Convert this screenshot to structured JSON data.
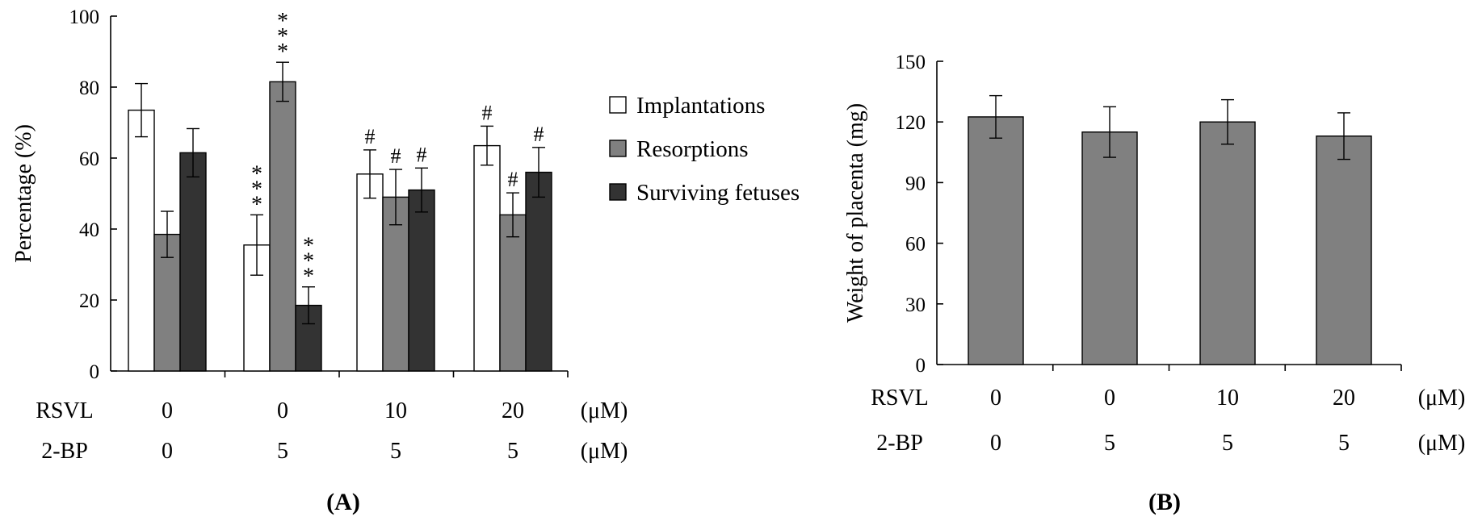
{
  "chart_data": [
    {
      "panel_label": "(A)",
      "type": "bar",
      "ylabel": "Percentage (%)",
      "ylim": [
        0,
        100
      ],
      "yticks": [
        0,
        20,
        40,
        60,
        80,
        100
      ],
      "legend": "right",
      "row_labels": [
        {
          "name": "RSVL",
          "values": [
            "0",
            "0",
            "10",
            "20"
          ],
          "unit": "(μM)"
        },
        {
          "name": "2-BP",
          "values": [
            "0",
            "5",
            "5",
            "5"
          ],
          "unit": "(μM)"
        }
      ],
      "series": [
        {
          "name": "Implantations",
          "color": "#ffffff",
          "values": [
            73.5,
            35.5,
            55.5,
            63.5
          ],
          "errors": [
            7.5,
            8.5,
            6.8,
            5.5
          ],
          "marks": [
            "",
            "***",
            "#",
            "#"
          ]
        },
        {
          "name": "Resorptions",
          "color": "#808080",
          "values": [
            38.5,
            81.5,
            49,
            44
          ],
          "errors": [
            6.5,
            5.5,
            7.8,
            6.2
          ],
          "marks": [
            "",
            "***",
            "#",
            "#"
          ]
        },
        {
          "name": "Surviving fetuses",
          "color": "#333333",
          "values": [
            61.5,
            18.5,
            51,
            56
          ],
          "errors": [
            6.8,
            5.2,
            6.2,
            7
          ],
          "marks": [
            "",
            "***",
            "#",
            "#"
          ]
        }
      ]
    },
    {
      "panel_label": "(B)",
      "type": "bar",
      "ylabel": "Weight of placenta (mg)",
      "ylim": [
        0,
        150
      ],
      "yticks": [
        0,
        30,
        60,
        90,
        120,
        150
      ],
      "row_labels": [
        {
          "name": "RSVL",
          "values": [
            "0",
            "0",
            "10",
            "20"
          ],
          "unit": "(μM)"
        },
        {
          "name": "2-BP",
          "values": [
            "0",
            "5",
            "5",
            "5"
          ],
          "unit": "(μM)"
        }
      ],
      "series": [
        {
          "color": "#808080",
          "values": [
            122.5,
            115,
            120,
            113
          ],
          "errors": [
            10.5,
            12.5,
            11,
            11.5
          ]
        }
      ]
    }
  ]
}
